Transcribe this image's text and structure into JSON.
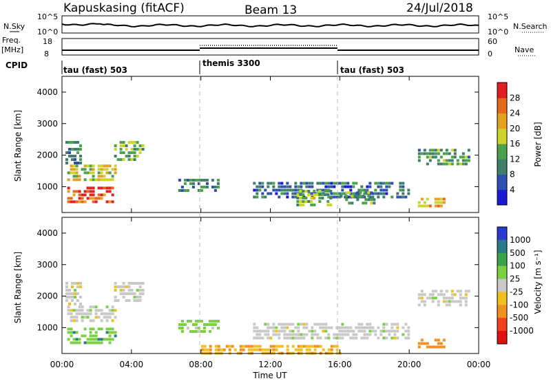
{
  "header": {
    "station": "Kapuskasing (fitACF)",
    "beam": "Beam 13",
    "date": "24/Jul/2018"
  },
  "noise_panel": {
    "left_label": "N.Sky",
    "right_label": "N.Search",
    "left_ticks": [
      "10^5",
      "10^0"
    ],
    "right_ticks": [
      "10^5",
      "10^0"
    ]
  },
  "freq_panel": {
    "left_label_1": "Freq.",
    "left_label_2": "[MHz]",
    "right_label": "Nave",
    "left_ticks": [
      "18",
      "8"
    ],
    "right_ticks": [
      "60",
      "0"
    ]
  },
  "cpid": {
    "label": "CPID",
    "segments": [
      {
        "name": "tau (fast) 503",
        "start_hr": 0,
        "end_hr": 8
      },
      {
        "name": "themis 3300",
        "start_hr": 8,
        "end_hr": 16
      },
      {
        "name": "tau (fast) 503",
        "start_hr": 16,
        "end_hr": 24
      }
    ]
  },
  "axes": {
    "ylabel": "Slant Range [km]",
    "yticks": [
      "1000",
      "2000",
      "3000",
      "4000"
    ],
    "xticks": [
      "00:00",
      "04:00",
      "08:00",
      "12:00",
      "16:00",
      "20:00",
      "00:00"
    ],
    "xlabel": "Time UT"
  },
  "power_colorbar": {
    "label": "Power [dB]",
    "ticks": [
      "4",
      "8",
      "12",
      "16",
      "20",
      "24",
      "28"
    ],
    "colors": [
      "#1a1ad6",
      "#2f4fb0",
      "#3f7e6a",
      "#4aa24a",
      "#cfd42a",
      "#e6a020",
      "#e36a1a",
      "#e02020"
    ]
  },
  "velocity_colorbar": {
    "label": "Velocity [m s⁻¹]",
    "ticks": [
      "1000",
      "500",
      "100",
      "25",
      "-25",
      "-100",
      "-500",
      "-1000"
    ],
    "colors": [
      "#2a3ad0",
      "#2a7a8a",
      "#3aa24a",
      "#7ad040",
      "#c8c8c8",
      "#f0c020",
      "#f09020",
      "#f04020",
      "#e01010"
    ]
  },
  "chart_data": {
    "type": "heatmap",
    "title": "Kapuskasing (fitACF) Beam 13 24/Jul/2018",
    "xlabel": "Time UT",
    "ylabel": "Slant Range [km]",
    "xlim": [
      0,
      24
    ],
    "ylim": [
      180,
      4500
    ],
    "panels": [
      {
        "quantity": "Power [dB]",
        "clim": [
          0,
          30
        ],
        "regions": [
          {
            "t": [
              0.2,
              1.0
            ],
            "r": [
              1700,
              2450
            ],
            "value": 10
          },
          {
            "t": [
              0.3,
              3.0
            ],
            "r": [
              1250,
              1700
            ],
            "value": 18
          },
          {
            "t": [
              0.3,
              3.0
            ],
            "r": [
              550,
              1000
            ],
            "value": 26
          },
          {
            "t": [
              3.0,
              4.7
            ],
            "r": [
              1800,
              2450
            ],
            "value": 14
          },
          {
            "t": [
              6.7,
              9.0
            ],
            "r": [
              900,
              1250
            ],
            "value": 10
          },
          {
            "t": [
              11.0,
              20.0
            ],
            "r": [
              650,
              1150
            ],
            "value": 8
          },
          {
            "t": [
              13.5,
              15.5
            ],
            "r": [
              400,
              900
            ],
            "value": 14
          },
          {
            "t": [
              16.0,
              18.0
            ],
            "r": [
              450,
              850
            ],
            "value": 12
          },
          {
            "t": [
              20.5,
              23.5
            ],
            "r": [
              1700,
              2200
            ],
            "value": 12
          },
          {
            "t": [
              20.5,
              22.0
            ],
            "r": [
              350,
              650
            ],
            "value": 20
          }
        ]
      },
      {
        "quantity": "Velocity [m s⁻¹]",
        "clim": [
          -1000,
          1000
        ],
        "regions": [
          {
            "t": [
              0.2,
              1.0
            ],
            "r": [
              1700,
              2450
            ],
            "value": 0
          },
          {
            "t": [
              0.3,
              3.0
            ],
            "r": [
              1250,
              1700
            ],
            "value": 0
          },
          {
            "t": [
              0.3,
              3.0
            ],
            "r": [
              550,
              1000
            ],
            "value": 80
          },
          {
            "t": [
              3.0,
              4.7
            ],
            "r": [
              1800,
              2450
            ],
            "value": 0
          },
          {
            "t": [
              6.7,
              9.0
            ],
            "r": [
              900,
              1250
            ],
            "value": 50
          },
          {
            "t": [
              11.0,
              20.0
            ],
            "r": [
              650,
              1150
            ],
            "value": 0
          },
          {
            "t": [
              8.0,
              16.0
            ],
            "r": [
              200,
              450
            ],
            "value": -90
          },
          {
            "t": [
              20.5,
              23.5
            ],
            "r": [
              1700,
              2200
            ],
            "value": 0
          },
          {
            "t": [
              20.5,
              22.0
            ],
            "r": [
              350,
              650
            ],
            "value": -300
          }
        ]
      }
    ]
  }
}
